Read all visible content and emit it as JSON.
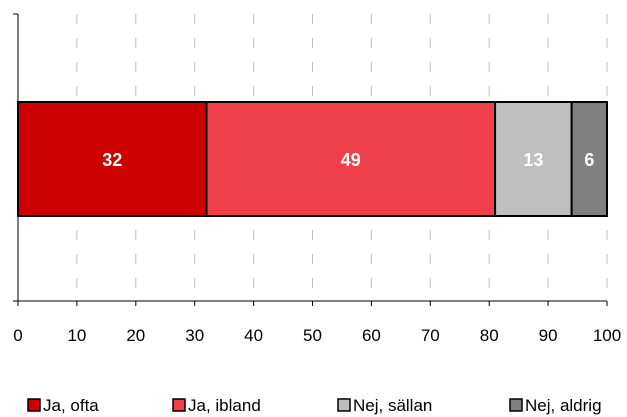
{
  "chart_data": {
    "type": "bar",
    "orientation": "horizontal",
    "stacked": true,
    "categories": [
      ""
    ],
    "series": [
      {
        "name": "Ja, ofta",
        "values": [
          32
        ],
        "color": "#CC0000"
      },
      {
        "name": "Ja, ibland",
        "values": [
          49
        ],
        "color": "#EF3F48"
      },
      {
        "name": "Nej, sällan",
        "values": [
          13
        ],
        "color": "#BFBFBF"
      },
      {
        "name": "Nej, aldrig",
        "values": [
          6
        ],
        "color": "#808080"
      }
    ],
    "data_labels": [
      "32",
      "49",
      "13",
      "6"
    ],
    "title": "",
    "xlabel": "",
    "ylabel": "",
    "xlim": [
      0,
      100
    ],
    "x_ticks": [
      "0",
      "10",
      "20",
      "30",
      "40",
      "50",
      "60",
      "70",
      "80",
      "90",
      "100"
    ],
    "grid": "vertical dashed",
    "legend_position": "bottom"
  }
}
